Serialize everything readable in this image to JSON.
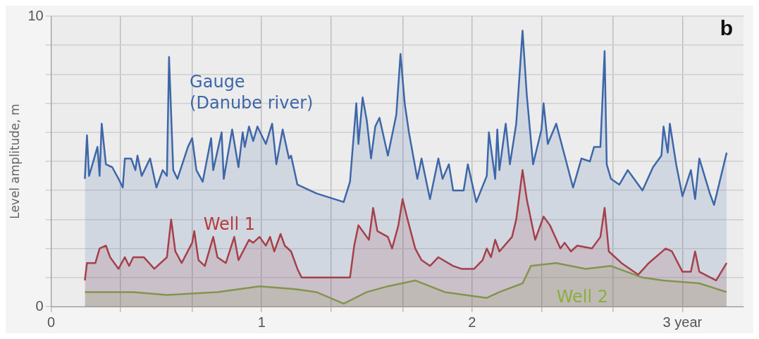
{
  "chart_data": {
    "type": "area",
    "ylabel": "Level amplitude, m",
    "annotations": [
      "b"
    ],
    "xlim": [
      0,
      3.29
    ],
    "ylim": [
      0,
      10
    ],
    "xticks": [
      0,
      {
        "value": 0.33,
        "label": null
      },
      {
        "value": 0.67,
        "label": null
      },
      1,
      {
        "value": 1.33,
        "label": null
      },
      {
        "value": 1.67,
        "label": null
      },
      2,
      {
        "value": 2.33,
        "label": null
      },
      {
        "value": 2.67,
        "label": null
      },
      {
        "value": 3,
        "label": "3 year"
      }
    ],
    "yticks": [
      0,
      {
        "value": 1,
        "label": null
      },
      {
        "value": 2,
        "label": null
      },
      {
        "value": 3,
        "label": null
      },
      {
        "value": 4,
        "label": null
      },
      {
        "value": 5,
        "label": null
      },
      {
        "value": 6,
        "label": null
      },
      {
        "value": 7,
        "label": null
      },
      {
        "value": 8,
        "label": null
      },
      {
        "value": 9,
        "label": null
      },
      10
    ],
    "grid": true,
    "legend": false,
    "marker": "none",
    "line_style": "solid",
    "series": [
      {
        "name": "Gauge (Danube river)",
        "color": "#3d67a8",
        "x": [
          0.16,
          0.17,
          0.18,
          0.22,
          0.23,
          0.24,
          0.26,
          0.29,
          0.32,
          0.34,
          0.35,
          0.38,
          0.4,
          0.41,
          0.43,
          0.47,
          0.5,
          0.53,
          0.55,
          0.56,
          0.58,
          0.6,
          0.65,
          0.67,
          0.69,
          0.72,
          0.76,
          0.77,
          0.81,
          0.82,
          0.86,
          0.89,
          0.91,
          0.92,
          0.94,
          0.96,
          0.98,
          1.02,
          1.05,
          1.07,
          1.1,
          1.13,
          1.14,
          1.17,
          1.26,
          1.39,
          1.42,
          1.45,
          1.46,
          1.48,
          1.5,
          1.52,
          1.54,
          1.56,
          1.6,
          1.64,
          1.66,
          1.68,
          1.7,
          1.74,
          1.76,
          1.8,
          1.84,
          1.86,
          1.89,
          1.91,
          1.96,
          1.98,
          2.02,
          2.07,
          2.08,
          2.11,
          2.12,
          2.13,
          2.16,
          2.18,
          2.21,
          2.24,
          2.26,
          2.29,
          2.33,
          2.34,
          2.36,
          2.4,
          2.44,
          2.48,
          2.52,
          2.56,
          2.58,
          2.61,
          2.63,
          2.64,
          2.66,
          2.7,
          2.74,
          2.81,
          2.86,
          2.9,
          2.91,
          2.93,
          2.94,
          2.97,
          3.0,
          3.04,
          3.06,
          3.08,
          3.13,
          3.15,
          3.21
        ],
        "values": [
          4.4,
          5.9,
          4.5,
          5.5,
          4.5,
          6.3,
          4.9,
          4.8,
          4.4,
          4.1,
          5.1,
          5.1,
          4.7,
          5.2,
          4.5,
          5.1,
          4.1,
          4.7,
          4.5,
          8.6,
          4.7,
          4.4,
          5.5,
          5.8,
          4.7,
          4.3,
          5.8,
          4.7,
          6.0,
          4.4,
          6.1,
          4.8,
          6.0,
          5.5,
          6.2,
          5.7,
          6.2,
          5.6,
          6.3,
          4.9,
          6.1,
          5.1,
          5.2,
          4.2,
          3.9,
          3.6,
          4.3,
          7.0,
          5.6,
          7.2,
          6.4,
          5.1,
          6.2,
          6.5,
          5.2,
          6.6,
          8.7,
          7.0,
          6.0,
          4.4,
          5.1,
          3.7,
          5.1,
          4.4,
          4.9,
          4.0,
          4.0,
          4.9,
          3.6,
          4.5,
          6.0,
          4.4,
          6.1,
          4.7,
          6.3,
          4.9,
          6.3,
          9.5,
          7.3,
          4.9,
          6.1,
          7.0,
          5.6,
          6.3,
          5.2,
          4.1,
          5.1,
          5.0,
          5.5,
          5.5,
          8.8,
          4.9,
          4.4,
          4.2,
          4.7,
          4.0,
          4.8,
          5.2,
          6.2,
          5.3,
          6.3,
          4.9,
          3.8,
          4.7,
          3.7,
          5.1,
          3.9,
          3.5,
          5.3
        ]
      },
      {
        "name": "Well 1",
        "color": "#b83a3a",
        "x": [
          0.16,
          0.17,
          0.21,
          0.23,
          0.26,
          0.28,
          0.32,
          0.35,
          0.37,
          0.39,
          0.44,
          0.49,
          0.55,
          0.57,
          0.59,
          0.62,
          0.67,
          0.68,
          0.7,
          0.73,
          0.77,
          0.79,
          0.83,
          0.87,
          0.89,
          0.94,
          0.96,
          0.99,
          1.02,
          1.04,
          1.06,
          1.09,
          1.11,
          1.14,
          1.17,
          1.19,
          1.42,
          1.44,
          1.46,
          1.51,
          1.53,
          1.55,
          1.6,
          1.62,
          1.65,
          1.67,
          1.69,
          1.73,
          1.76,
          1.8,
          1.84,
          1.91,
          1.95,
          2.01,
          2.05,
          2.07,
          2.09,
          2.11,
          2.13,
          2.19,
          2.21,
          2.24,
          2.26,
          2.28,
          2.3,
          2.34,
          2.37,
          2.42,
          2.44,
          2.47,
          2.5,
          2.57,
          2.61,
          2.63,
          2.65,
          2.71,
          2.79,
          2.84,
          2.92,
          2.95,
          3.0,
          3.04,
          3.06,
          3.08,
          3.16,
          3.21
        ],
        "values": [
          0.9,
          1.5,
          1.5,
          2.0,
          2.1,
          1.7,
          1.3,
          1.7,
          1.4,
          1.7,
          1.7,
          1.3,
          1.7,
          3.0,
          1.9,
          1.5,
          2.2,
          2.6,
          1.6,
          1.4,
          2.4,
          1.7,
          1.5,
          2.4,
          1.6,
          2.3,
          2.2,
          2.4,
          2.1,
          2.4,
          1.9,
          2.5,
          2.1,
          1.9,
          1.3,
          1.0,
          1.0,
          2.1,
          2.8,
          2.3,
          3.4,
          2.6,
          2.4,
          2.0,
          2.8,
          3.7,
          3.1,
          2.0,
          1.6,
          1.4,
          1.7,
          1.4,
          1.3,
          1.3,
          1.6,
          2.0,
          1.7,
          2.3,
          1.9,
          2.4,
          3.0,
          4.7,
          3.7,
          3.0,
          2.3,
          3.1,
          2.8,
          2.0,
          2.2,
          1.9,
          2.1,
          2.0,
          2.4,
          3.4,
          1.9,
          1.5,
          1.1,
          1.5,
          2.0,
          1.9,
          1.2,
          1.2,
          1.9,
          1.2,
          0.9,
          1.5
        ]
      },
      {
        "name": "Well 2",
        "color": "#8aaf3c",
        "x": [
          0.16,
          0.29,
          0.39,
          0.55,
          0.79,
          0.99,
          1.16,
          1.26,
          1.39,
          1.5,
          1.6,
          1.73,
          1.87,
          2.07,
          2.13,
          2.24,
          2.28,
          2.4,
          2.54,
          2.66,
          2.81,
          2.91,
          3.08,
          3.21
        ],
        "values": [
          0.5,
          0.5,
          0.5,
          0.4,
          0.5,
          0.7,
          0.6,
          0.5,
          0.1,
          0.5,
          0.7,
          0.9,
          0.5,
          0.3,
          0.5,
          0.8,
          1.4,
          1.5,
          1.3,
          1.4,
          1.0,
          0.9,
          0.8,
          0.5
        ]
      }
    ]
  }
}
